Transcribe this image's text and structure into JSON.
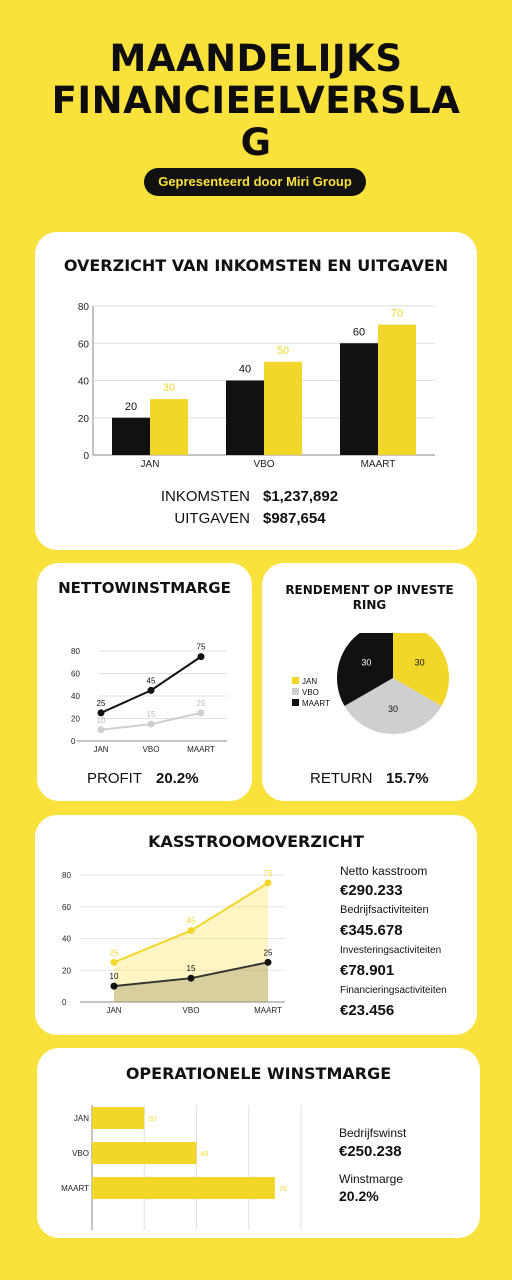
{
  "header": {
    "title_line1": "MAANDELIJKS",
    "title_line2": "FINANCIEELVERSLA",
    "title_line3": "G",
    "subtitle": "Gepresenteerd door Miri Group"
  },
  "colors": {
    "yellow": "#f9e23c",
    "bar_yellow": "#f2d62a",
    "black": "#111111",
    "grey": "#cfcfcf"
  },
  "income_card": {
    "title": "OVERZICHT VAN INKOMSTEN EN UITGAVEN",
    "income_label": "INKOMSTEN",
    "income_value": "$1,237,892",
    "expense_label": "UITGAVEN",
    "expense_value": "$987,654"
  },
  "margin_card": {
    "title": "NETTOWINSTMARGE",
    "kpi_label": "PROFIT",
    "kpi_value": "20.2%"
  },
  "roi_card": {
    "title_line1": "RENDEMENT OP INVESTE",
    "title_line2": "RING",
    "kpi_label": "RETURN",
    "kpi_value": "15.7%"
  },
  "cashflow_card": {
    "title": "KASSTROOMOVERZICHT",
    "items": [
      {
        "label": "Netto kasstroom",
        "value": "€290.233"
      },
      {
        "label": "Bedrijfsactiviteiten",
        "value": "€345.678"
      },
      {
        "label": "Investeringsactiviteiten",
        "value": "€78.901"
      },
      {
        "label": "Financieringsactiviteiten",
        "value": "€23.456"
      }
    ]
  },
  "operational_card": {
    "title": "OPERATIONELE WINSTMARGE",
    "items": [
      {
        "label": "Bedrijfswinst",
        "value": "€250.238"
      },
      {
        "label": "Winstmarge",
        "value": "20.2%"
      }
    ]
  },
  "chart_data": [
    {
      "type": "bar",
      "categories": [
        "JAN",
        "VBO",
        "MAART"
      ],
      "series": [
        {
          "values": [
            20,
            40,
            60
          ]
        },
        {
          "values": [
            30,
            50,
            70
          ]
        }
      ],
      "ylim": [
        0,
        80
      ],
      "yticks": [
        0,
        20,
        40,
        60,
        80
      ],
      "grid": true
    },
    {
      "type": "line",
      "categories": [
        "JAN",
        "VBO",
        "MAART"
      ],
      "series": [
        {
          "values": [
            25,
            45,
            75
          ]
        },
        {
          "values": [
            10,
            15,
            25
          ]
        }
      ],
      "ylim": [
        0,
        80
      ],
      "yticks": [
        0,
        20,
        40,
        60,
        80
      ],
      "grid": true
    },
    {
      "type": "pie",
      "labels": [
        "JAN",
        "VBO",
        "MAART"
      ],
      "values": [
        30,
        30,
        30
      ],
      "legend": "left"
    },
    {
      "type": "area",
      "categories": [
        "JAN",
        "VBO",
        "MAART"
      ],
      "series": [
        {
          "values": [
            25,
            45,
            75
          ]
        },
        {
          "values": [
            10,
            15,
            25
          ]
        }
      ],
      "ylim": [
        0,
        80
      ],
      "yticks": [
        0,
        20,
        40,
        60,
        80
      ],
      "grid": true
    },
    {
      "type": "bar",
      "orientation": "horizontal",
      "categories": [
        "JAN",
        "VBO",
        "MAART"
      ],
      "values": [
        20,
        40,
        70
      ],
      "xlim": [
        0,
        80
      ],
      "xticks": [
        0,
        20,
        40,
        60,
        80
      ],
      "grid": true
    }
  ]
}
